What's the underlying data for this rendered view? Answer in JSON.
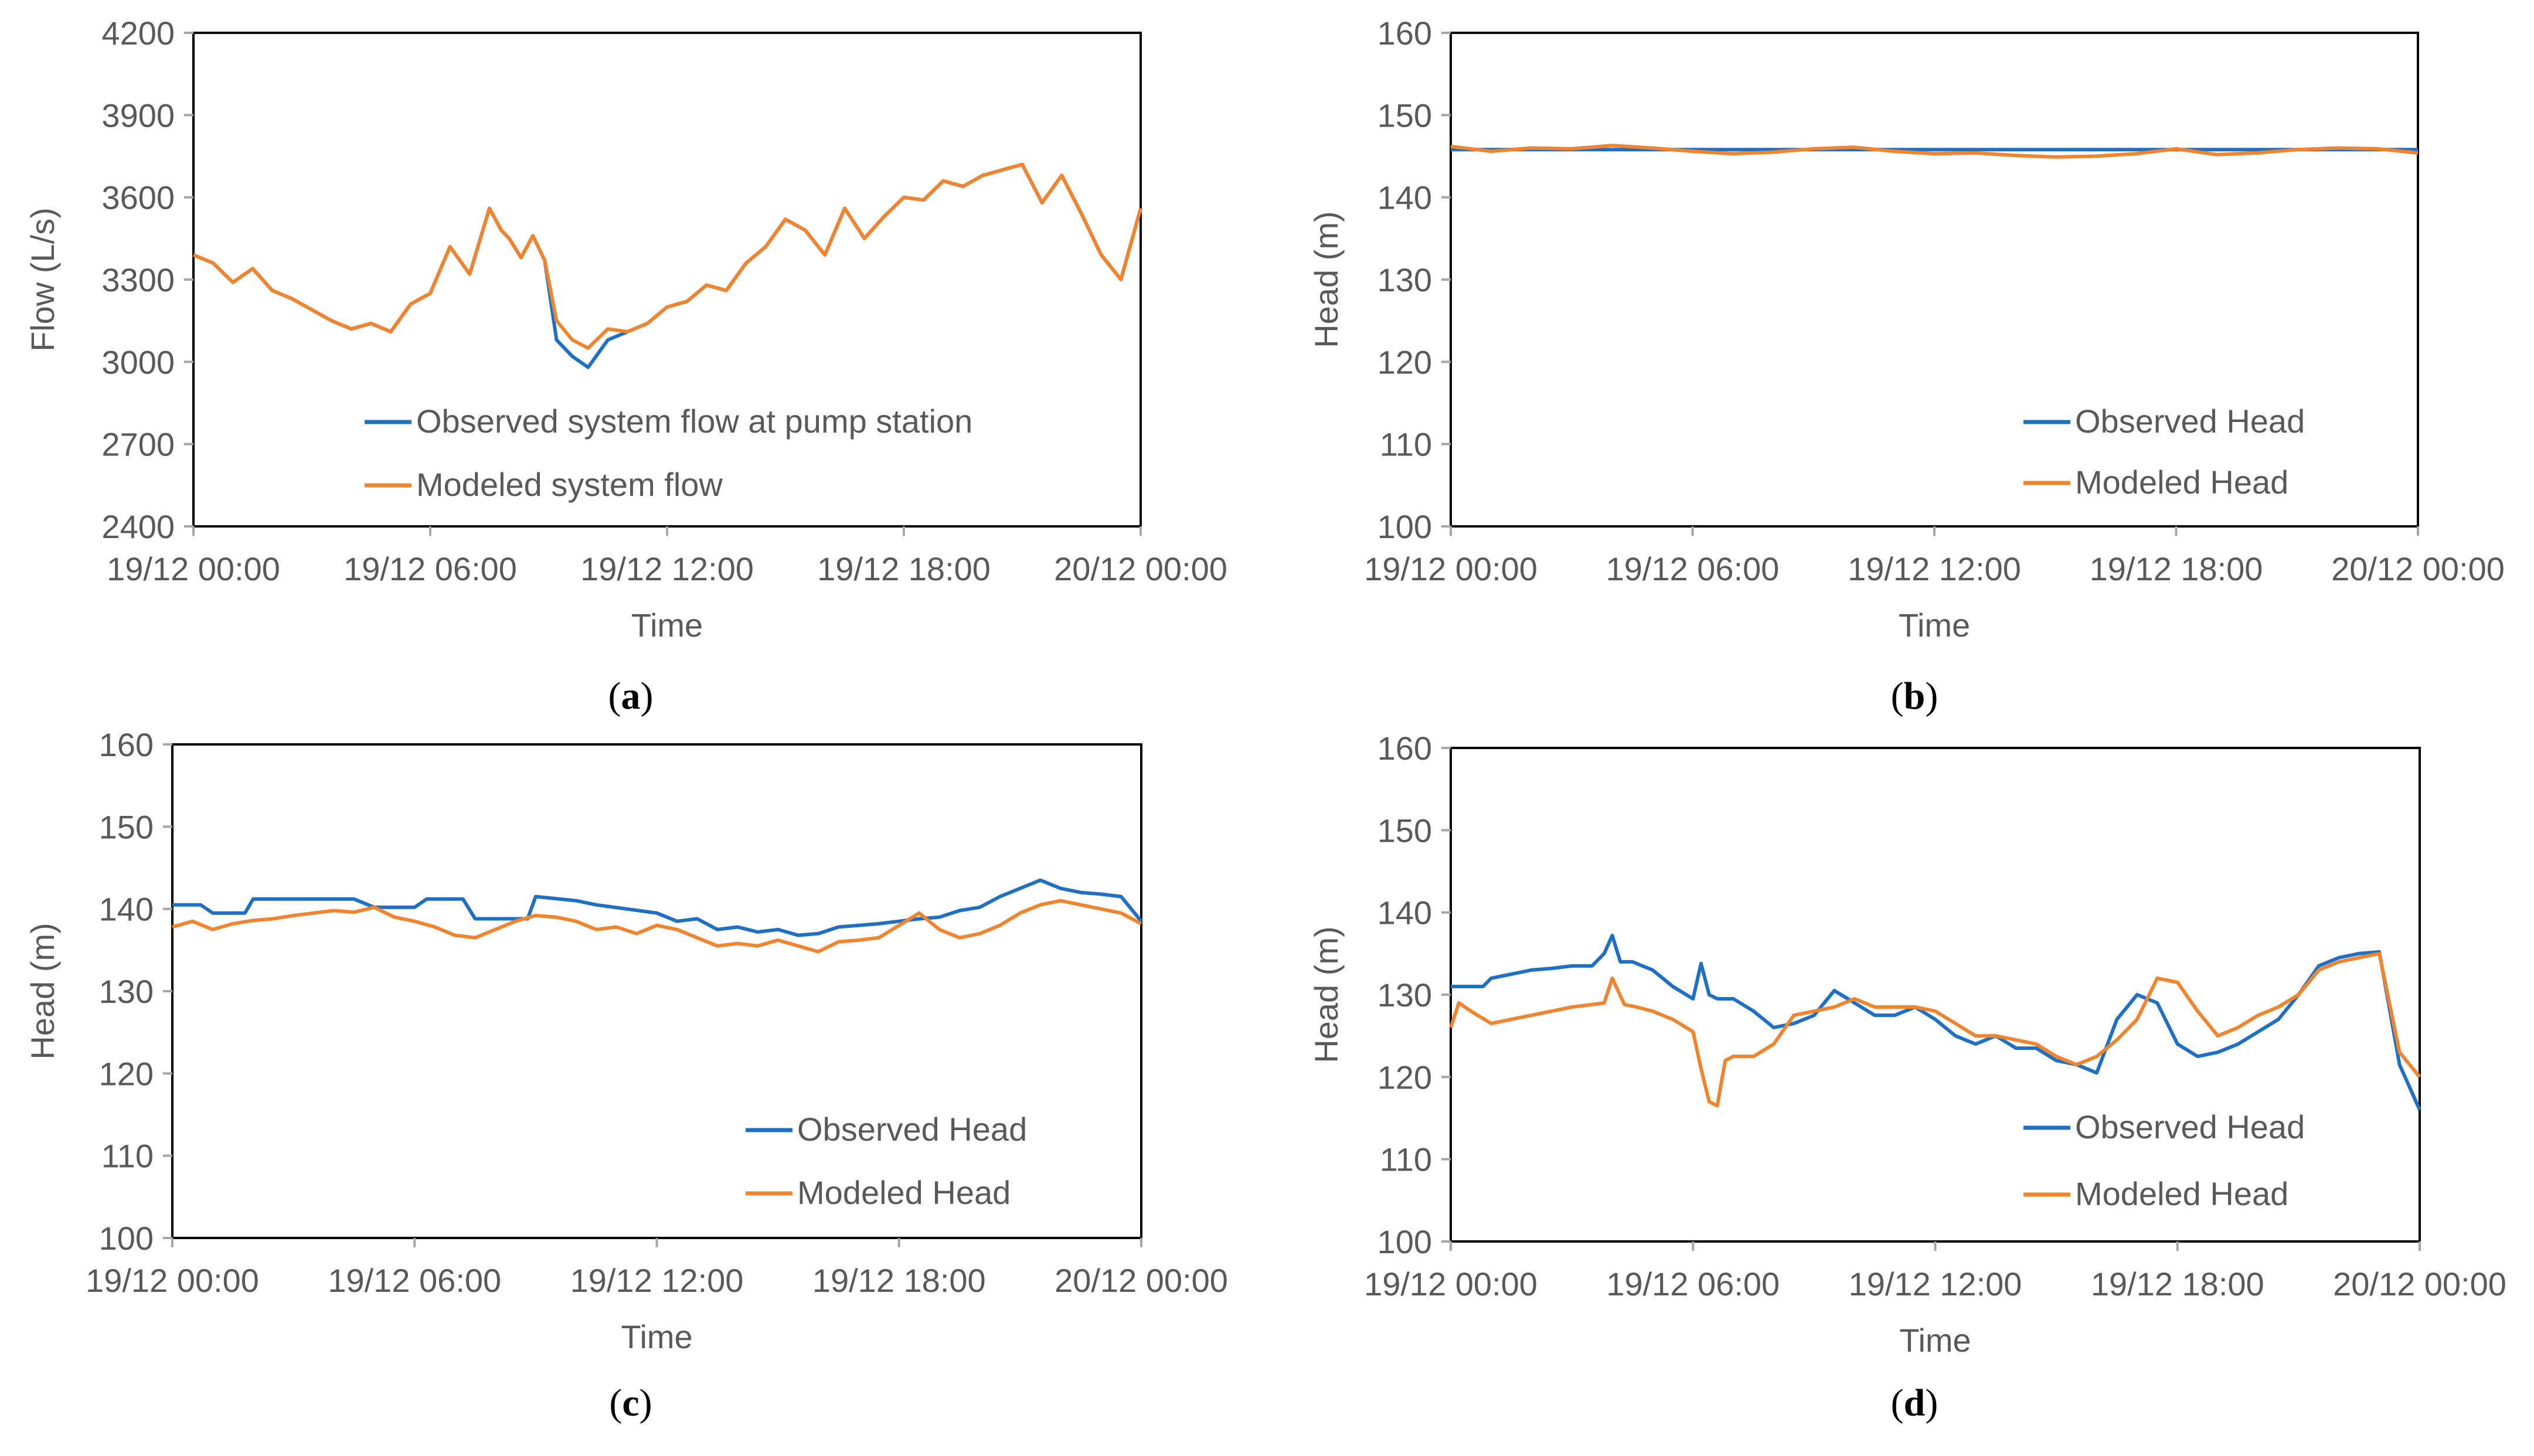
{
  "colors": {
    "observed": "#1f6fc5",
    "modeled": "#f0842f",
    "axis": "#a6a6a6",
    "frame": "#000000",
    "text": "#595959"
  },
  "panel_labels": [
    "a",
    "b",
    "c",
    "d"
  ],
  "chart_data": [
    {
      "type": "line",
      "panel": "a",
      "xlabel": "Time",
      "ylabel": "Flow (L/s)",
      "x_ticks": [
        "19/12 00:00",
        "19/12 06:00",
        "19/12 12:00",
        "19/12 18:00",
        "20/12 00:00"
      ],
      "y_ticks": [
        2400,
        2700,
        3000,
        3300,
        3600,
        3900,
        4200
      ],
      "xlim": [
        0,
        24
      ],
      "ylim": [
        2400,
        4200
      ],
      "legend_position": "bottom-right",
      "series": [
        {
          "name": "Observed system flow at pump station",
          "color": "#1f6fc5",
          "x": [
            0,
            0.5,
            1,
            1.5,
            2,
            2.5,
            3,
            3.5,
            4,
            4.5,
            5,
            5.5,
            6,
            6.5,
            7,
            7.5,
            7.8,
            8,
            8.3,
            8.6,
            8.9,
            9.2,
            9.6,
            10,
            10.5,
            11,
            11.5,
            12,
            12.5,
            13,
            13.5,
            14,
            14.5,
            15,
            15.5,
            16,
            16.5,
            17,
            17.5,
            18,
            18.5,
            19,
            19.5,
            20,
            20.5,
            21,
            21.5,
            22,
            22.5,
            23,
            23.5,
            24
          ],
          "y": [
            3390,
            3360,
            3290,
            3340,
            3260,
            3230,
            3190,
            3150,
            3120,
            3140,
            3110,
            3210,
            3250,
            3420,
            3320,
            3560,
            3480,
            3450,
            3380,
            3460,
            3370,
            3080,
            3020,
            2980,
            3080,
            3110,
            3140,
            3200,
            3220,
            3280,
            3260,
            3360,
            3420,
            3520,
            3480,
            3390,
            3560,
            3450,
            3530,
            3600,
            3590,
            3660,
            3640,
            3680,
            3700,
            3720,
            3580,
            3680,
            3540,
            3390,
            3300,
            3560
          ]
        },
        {
          "name": "Modeled system flow",
          "color": "#f0842f",
          "x": [
            0,
            0.5,
            1,
            1.5,
            2,
            2.5,
            3,
            3.5,
            4,
            4.5,
            5,
            5.5,
            6,
            6.5,
            7,
            7.5,
            7.8,
            8,
            8.3,
            8.6,
            8.9,
            9.2,
            9.6,
            10,
            10.5,
            11,
            11.5,
            12,
            12.5,
            13,
            13.5,
            14,
            14.5,
            15,
            15.5,
            16,
            16.5,
            17,
            17.5,
            18,
            18.5,
            19,
            19.5,
            20,
            20.5,
            21,
            21.5,
            22,
            22.5,
            23,
            23.5,
            24
          ],
          "y": [
            3390,
            3360,
            3290,
            3340,
            3260,
            3230,
            3190,
            3150,
            3120,
            3140,
            3110,
            3210,
            3250,
            3420,
            3320,
            3560,
            3480,
            3450,
            3380,
            3460,
            3370,
            3150,
            3080,
            3050,
            3120,
            3110,
            3140,
            3200,
            3220,
            3280,
            3260,
            3360,
            3420,
            3520,
            3480,
            3390,
            3560,
            3450,
            3530,
            3600,
            3590,
            3660,
            3640,
            3680,
            3700,
            3720,
            3580,
            3680,
            3540,
            3390,
            3300,
            3560
          ]
        }
      ]
    },
    {
      "type": "line",
      "panel": "b",
      "xlabel": "Time",
      "ylabel": "Head (m)",
      "x_ticks": [
        "19/12 00:00",
        "19/12 06:00",
        "19/12 12:00",
        "19/12 18:00",
        "20/12 00:00"
      ],
      "y_ticks": [
        100,
        110,
        120,
        130,
        140,
        150,
        160
      ],
      "xlim": [
        0,
        24
      ],
      "ylim": [
        100,
        160
      ],
      "legend_position": "bottom-right",
      "series": [
        {
          "name": "Observed Head",
          "color": "#1f6fc5",
          "x": [
            0,
            24
          ],
          "y": [
            145.8,
            145.8
          ]
        },
        {
          "name": "Modeled Head",
          "color": "#f0842f",
          "x": [
            0,
            1,
            2,
            3,
            4,
            5,
            6,
            7,
            8,
            9,
            10,
            11,
            12,
            13,
            14,
            15,
            16,
            17,
            18,
            19,
            20,
            21,
            22,
            23,
            24
          ],
          "y": [
            146.2,
            145.6,
            146.0,
            145.9,
            146.3,
            146.0,
            145.6,
            145.3,
            145.5,
            145.9,
            146.1,
            145.6,
            145.3,
            145.4,
            145.1,
            144.9,
            145.0,
            145.3,
            145.9,
            145.2,
            145.4,
            145.8,
            146.0,
            145.9,
            145.4
          ]
        }
      ]
    },
    {
      "type": "line",
      "panel": "c",
      "xlabel": "Time",
      "ylabel": "Head (m)",
      "x_ticks": [
        "19/12 00:00",
        "19/12 06:00",
        "19/12 12:00",
        "19/12 18:00",
        "20/12 00:00"
      ],
      "y_ticks": [
        100,
        110,
        120,
        130,
        140,
        150,
        160
      ],
      "xlim": [
        0,
        24
      ],
      "ylim": [
        100,
        160
      ],
      "legend_position": "bottom-right",
      "series": [
        {
          "name": "Observed Head",
          "color": "#1f6fc5",
          "x": [
            0,
            0.7,
            1,
            1.8,
            2,
            4.5,
            5,
            6,
            6.3,
            7.2,
            7.5,
            8.8,
            9,
            10,
            10.5,
            12,
            12.5,
            13,
            13.5,
            14,
            14.5,
            15,
            15.5,
            16,
            16.5,
            17,
            17.5,
            18,
            18.5,
            19,
            19.5,
            20,
            20.5,
            21,
            21.5,
            22,
            22.5,
            23,
            23.5,
            24
          ],
          "y": [
            140.5,
            140.5,
            139.5,
            139.5,
            141.2,
            141.2,
            140.2,
            140.2,
            141.2,
            141.2,
            138.8,
            138.8,
            141.5,
            141.0,
            140.5,
            139.5,
            138.5,
            138.8,
            137.5,
            137.8,
            137.2,
            137.5,
            136.8,
            137.0,
            137.8,
            138.0,
            138.2,
            138.5,
            138.8,
            139.0,
            139.8,
            140.2,
            141.5,
            142.5,
            143.5,
            142.5,
            142.0,
            141.8,
            141.5,
            138.5
          ]
        },
        {
          "name": "Modeled Head",
          "color": "#f0842f",
          "x": [
            0,
            0.5,
            1,
            1.5,
            2,
            2.5,
            3,
            3.5,
            4,
            4.5,
            5,
            5.5,
            6,
            6.5,
            7,
            7.5,
            8,
            8.5,
            9,
            9.5,
            10,
            10.5,
            11,
            11.5,
            12,
            12.5,
            13,
            13.5,
            14,
            14.5,
            15,
            15.5,
            16,
            16.5,
            17,
            17.5,
            18,
            18.5,
            19,
            19.5,
            20,
            20.5,
            21,
            21.5,
            22,
            22.5,
            23,
            23.5,
            24
          ],
          "y": [
            137.8,
            138.5,
            137.5,
            138.2,
            138.6,
            138.8,
            139.2,
            139.5,
            139.8,
            139.6,
            140.2,
            139.0,
            138.5,
            137.8,
            136.8,
            136.5,
            137.5,
            138.5,
            139.2,
            139.0,
            138.5,
            137.5,
            137.8,
            137.0,
            138.0,
            137.5,
            136.5,
            135.5,
            135.8,
            135.5,
            136.2,
            135.5,
            134.8,
            136.0,
            136.2,
            136.5,
            138.0,
            139.5,
            137.5,
            136.5,
            137.0,
            138.0,
            139.5,
            140.5,
            141.0,
            140.5,
            140.0,
            139.5,
            138.2
          ]
        }
      ]
    },
    {
      "type": "line",
      "panel": "d",
      "xlabel": "Time",
      "ylabel": "Head (m)",
      "x_ticks": [
        "19/12 00:00",
        "19/12 06:00",
        "19/12 12:00",
        "19/12 18:00",
        "20/12 00:00"
      ],
      "y_ticks": [
        100,
        110,
        120,
        130,
        140,
        150,
        160
      ],
      "xlim": [
        0,
        24
      ],
      "ylim": [
        100,
        160
      ],
      "legend_position": "bottom-right",
      "series": [
        {
          "name": "Observed Head",
          "color": "#1f6fc5",
          "x": [
            0,
            0.8,
            1,
            1.5,
            2,
            2.5,
            3,
            3.5,
            3.8,
            4,
            4.2,
            4.5,
            5,
            5.5,
            6,
            6.2,
            6.4,
            6.6,
            7,
            7.5,
            8,
            8.5,
            9,
            9.5,
            10,
            10.5,
            11,
            11.5,
            12,
            12.5,
            13,
            13.5,
            14,
            14.5,
            15,
            15.5,
            16,
            16.5,
            17,
            17.5,
            18,
            18.5,
            19,
            19.5,
            20,
            20.5,
            21,
            21.5,
            22,
            22.5,
            23,
            23.5,
            24
          ],
          "y": [
            131,
            131,
            132,
            132.5,
            133,
            133.2,
            133.5,
            133.5,
            135,
            137.2,
            134,
            134,
            133,
            131,
            129.5,
            133.8,
            130,
            129.5,
            129.5,
            128,
            126,
            126.5,
            127.5,
            130.5,
            129,
            127.5,
            127.5,
            128.5,
            127,
            125,
            124,
            125,
            123.5,
            123.5,
            122,
            121.5,
            120.5,
            127,
            130,
            129,
            124,
            122.5,
            123,
            124,
            125.5,
            127,
            130,
            133.5,
            134.5,
            135,
            135.2,
            121.5,
            116
          ]
        },
        {
          "name": "Modeled Head",
          "color": "#f0842f",
          "x": [
            0,
            0.2,
            0.5,
            1,
            1.5,
            2,
            2.5,
            3,
            3.5,
            3.8,
            4,
            4.3,
            4.6,
            5,
            5.5,
            6,
            6.2,
            6.4,
            6.6,
            6.8,
            7,
            7.5,
            8,
            8.5,
            9,
            9.5,
            10,
            10.5,
            11,
            11.5,
            12,
            12.5,
            13,
            13.5,
            14,
            14.5,
            15,
            15.5,
            16,
            16.5,
            17,
            17.5,
            18,
            18.5,
            19,
            19.5,
            20,
            20.5,
            21,
            21.5,
            22,
            22.5,
            23,
            23.5,
            24
          ],
          "y": [
            126,
            129,
            128,
            126.5,
            127,
            127.5,
            128,
            128.5,
            128.8,
            129,
            132,
            128.8,
            128.5,
            128,
            127,
            125.5,
            121,
            117,
            116.5,
            122,
            122.5,
            122.5,
            124,
            127.5,
            128,
            128.5,
            129.5,
            128.5,
            128.5,
            128.5,
            128,
            126.5,
            125,
            125,
            124.5,
            124,
            122.5,
            121.5,
            122.5,
            124.5,
            127,
            132,
            131.5,
            128,
            125,
            126,
            127.5,
            128.5,
            130,
            133,
            134,
            134.5,
            135,
            123,
            120
          ]
        }
      ]
    }
  ]
}
